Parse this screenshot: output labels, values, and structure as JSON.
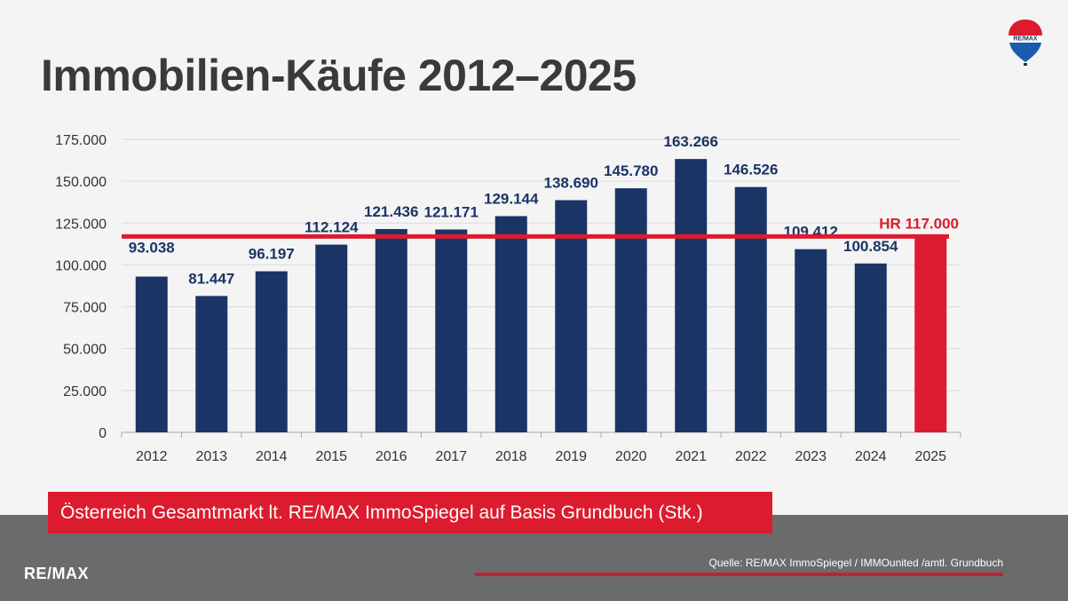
{
  "title": "Immobilien-Käufe 2012–2025",
  "subtitle": "Österreich Gesamtmarkt lt. RE/MAX ImmoSpiegel auf Basis Grundbuch (Stk.)",
  "footer": {
    "brand": "RE/MAX",
    "source": "Quelle: RE/MAX ImmoSpiegel / IMMOunited /amtl. Grundbuch",
    "logo_text": "RE/MAX"
  },
  "colors": {
    "bar": "#1b3466",
    "highlight": "#dc1c2e",
    "grid": "#d9d9d9",
    "title": "#3a3a3a"
  },
  "chart_data": {
    "type": "bar",
    "title": "",
    "xlabel": "",
    "ylabel": "",
    "ylim": [
      0,
      175000
    ],
    "grid": true,
    "categories": [
      "2012",
      "2013",
      "2014",
      "2015",
      "2016",
      "2017",
      "2018",
      "2019",
      "2020",
      "2021",
      "2022",
      "2023",
      "2024",
      "2025"
    ],
    "values": [
      93038,
      81447,
      96197,
      112124,
      121436,
      121171,
      129144,
      138690,
      145780,
      163266,
      146526,
      109412,
      100854,
      117000
    ],
    "data_labels": [
      "93.038",
      "81.447",
      "96.197",
      "112.124",
      "121.436",
      "121.171",
      "129.144",
      "138.690",
      "145.780",
      "163.266",
      "146.526",
      "109.412",
      "100.854",
      ""
    ],
    "y_ticks": [
      0,
      25000,
      50000,
      75000,
      100000,
      125000,
      150000,
      175000
    ],
    "y_tick_labels": [
      "0",
      "25.000",
      "50.000",
      "75.000",
      "100.000",
      "125.000",
      "150.000",
      "175.000"
    ],
    "highlight_index": 13,
    "reference_line": {
      "value": 117000,
      "label": "HR 117.000"
    }
  }
}
